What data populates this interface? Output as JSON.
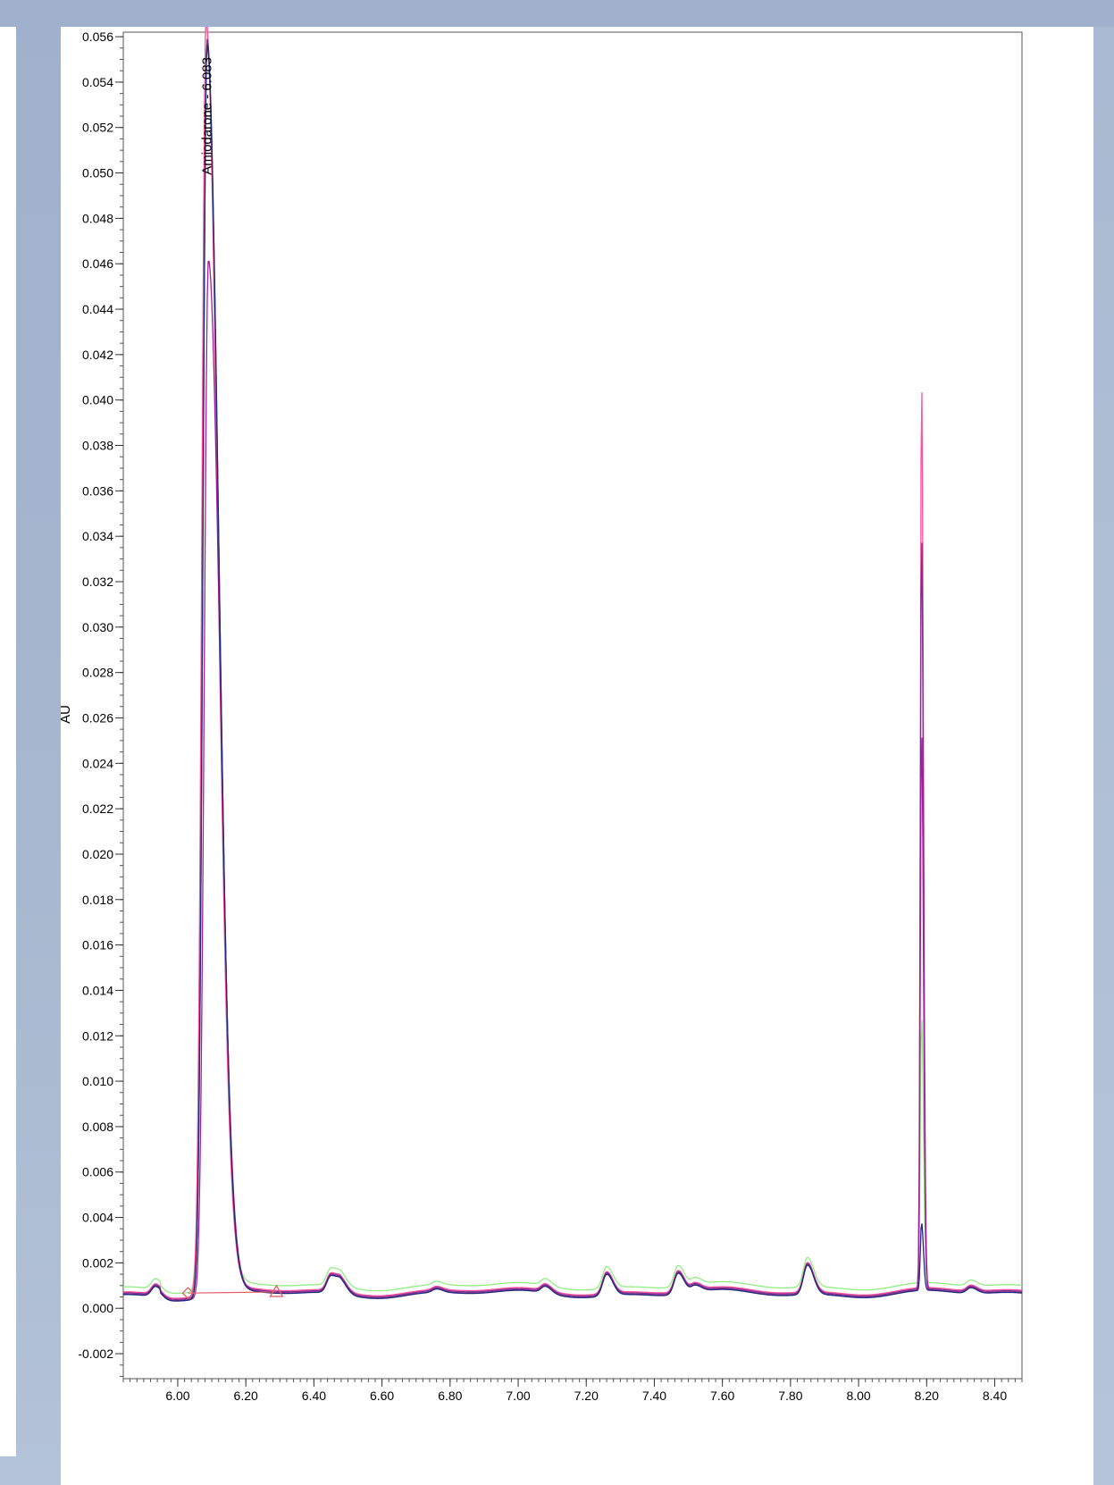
{
  "chart_data": {
    "type": "line",
    "title": "",
    "xlabel": "",
    "ylabel": "AU",
    "xlim": [
      5.84,
      8.48
    ],
    "ylim": [
      -0.0031,
      0.0562
    ],
    "x_ticks": [
      "6.00",
      "6.20",
      "6.40",
      "6.60",
      "6.80",
      "7.00",
      "7.20",
      "7.40",
      "7.60",
      "7.80",
      "8.00",
      "8.20",
      "8.40"
    ],
    "y_ticks": [
      "-0.002",
      "0.000",
      "0.002",
      "0.004",
      "0.006",
      "0.008",
      "0.010",
      "0.012",
      "0.014",
      "0.016",
      "0.018",
      "0.020",
      "0.022",
      "0.024",
      "0.026",
      "0.028",
      "0.030",
      "0.032",
      "0.034",
      "0.036",
      "0.038",
      "0.040",
      "0.042",
      "0.044",
      "0.046",
      "0.048",
      "0.050",
      "0.052",
      "0.054",
      "0.056"
    ],
    "peak_annotation": {
      "text": "Amiodarone - 6.083",
      "x": 6.083
    },
    "integration_baseline": {
      "start": [
        6.03,
        0.00067
      ],
      "end": [
        6.29,
        0.00072
      ]
    },
    "series": [
      {
        "color": "#90ee80",
        "baseline_offset": 0.00022,
        "peaks": [
          [
            6.083,
            0.0555
          ],
          [
            8.185,
            0.0118
          ]
        ]
      },
      {
        "color": "#ff4fa0",
        "baseline_offset": 0.0,
        "peaks": [
          [
            6.083,
            0.056
          ],
          [
            8.185,
            0.0402
          ]
        ]
      },
      {
        "color": "#7a2f8a",
        "baseline_offset": -5e-05,
        "peaks": [
          [
            6.086,
            0.0552
          ],
          [
            8.185,
            0.0335
          ]
        ]
      },
      {
        "color": "#a020a0",
        "baseline_offset": -0.0001,
        "peaks": [
          [
            6.09,
            0.0455
          ],
          [
            8.185,
            0.0248
          ]
        ]
      },
      {
        "color": "#1e2a7a",
        "baseline_offset": -0.00012,
        "peaks": [
          [
            6.086,
            0.055
          ],
          [
            8.185,
            0.003
          ]
        ]
      }
    ],
    "minor_peaks": [
      [
        5.935,
        0.00045
      ],
      [
        6.45,
        0.00075
      ],
      [
        6.48,
        0.0005
      ],
      [
        6.76,
        0.00015
      ],
      [
        7.08,
        0.0003
      ],
      [
        7.26,
        0.00095
      ],
      [
        7.47,
        0.00095
      ],
      [
        7.52,
        0.0003
      ],
      [
        7.85,
        0.0013
      ],
      [
        8.33,
        0.00025
      ]
    ],
    "grid": false,
    "legend": "none"
  }
}
